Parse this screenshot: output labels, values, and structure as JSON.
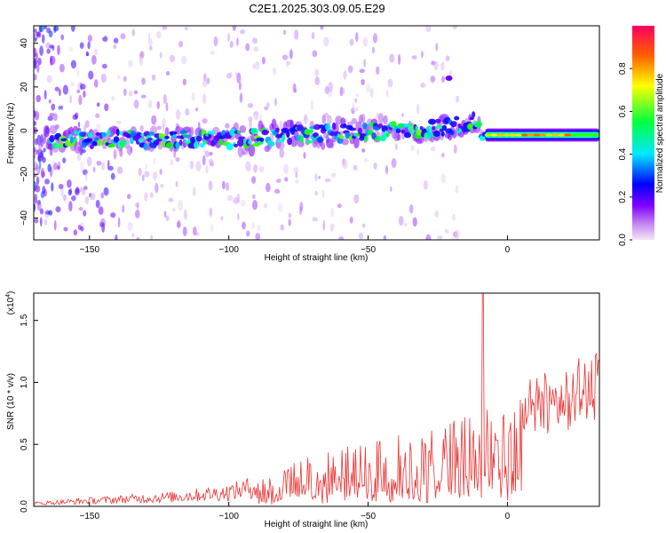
{
  "title": "C2E1.2025.303.09.05.E29",
  "chart_data": [
    {
      "type": "heatmap",
      "xlabel": "Height of straight line (km)",
      "ylabel": "Frequency (Hz)",
      "xlim": [
        -170,
        33
      ],
      "ylim": [
        -50,
        48
      ],
      "xticks": [
        -150,
        -100,
        -50,
        0
      ],
      "yticks": [
        -40,
        -20,
        0,
        20,
        40
      ],
      "colorbar": {
        "label": "Normalized spectral amplitude",
        "range": [
          0,
          1
        ],
        "ticks": [
          "0.0",
          "0.2",
          "0.4",
          "0.6",
          "0.8"
        ],
        "colormap": [
          "#f0e0f0",
          "#8000ff",
          "#0000ff",
          "#00ffff",
          "#00ff00",
          "#ffff00",
          "#ff0000"
        ]
      },
      "ridge": {
        "center_frequency": [
          {
            "x": -165,
            "y": -4
          },
          {
            "x": -100,
            "y": -4
          },
          {
            "x": -60,
            "y": -1
          },
          {
            "x": -30,
            "y": 0
          },
          {
            "x": -12,
            "y": 4
          },
          {
            "x": -8,
            "y": -2
          },
          {
            "x": 33,
            "y": -2
          }
        ],
        "tone_start_x": -8,
        "max_amplitude": 0.97
      },
      "isolated_blob": {
        "x": -21,
        "y": 24
      }
    },
    {
      "type": "line",
      "xlabel": "Height of straight line (km)",
      "ylabel": "SNR (10 * v/v)",
      "multiplier": "(x10^4)",
      "xlim": [
        -170,
        33
      ],
      "ylim": [
        0,
        1.72
      ],
      "xticks": [
        -150,
        -100,
        -50,
        0
      ],
      "yticks": [
        "0.0",
        "0.5",
        "1.0",
        "1.5"
      ],
      "series": [
        {
          "color": "#ee3333",
          "envelope": [
            {
              "x": -170,
              "y": 0.03
            },
            {
              "x": -150,
              "y": 0.06
            },
            {
              "x": -120,
              "y": 0.1
            },
            {
              "x": -100,
              "y": 0.15
            },
            {
              "x": -85,
              "y": 0.25
            },
            {
              "x": -70,
              "y": 0.4
            },
            {
              "x": -55,
              "y": 0.48
            },
            {
              "x": -40,
              "y": 0.55
            },
            {
              "x": -25,
              "y": 0.62
            },
            {
              "x": -15,
              "y": 0.7
            },
            {
              "x": -5,
              "y": 0.8
            },
            {
              "x": 5,
              "y": 0.95
            },
            {
              "x": 15,
              "y": 1.05
            },
            {
              "x": 25,
              "y": 1.15
            },
            {
              "x": 33,
              "y": 1.2
            }
          ],
          "spike": {
            "x": -9,
            "y": 1.72
          }
        }
      ]
    }
  ]
}
